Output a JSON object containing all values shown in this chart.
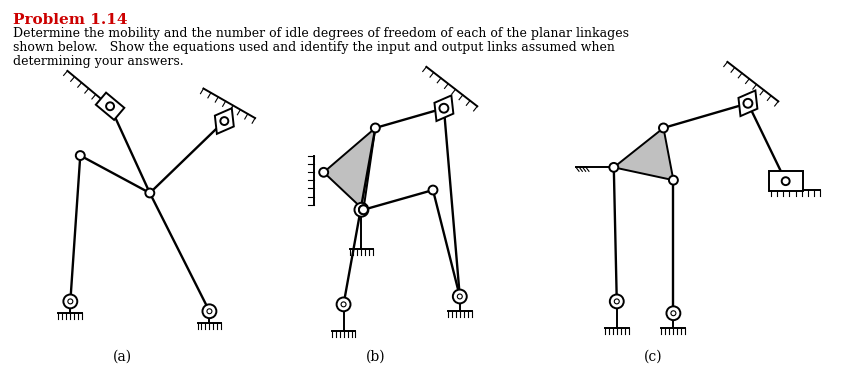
{
  "title": "Problem 1.14",
  "title_color": "#cc0000",
  "line1": "Determine the mobility and the number of idle degrees of freedom of each of the planar linkages",
  "line2": "shown below.   Show the equations used and identify the input and output links assumed when",
  "line3": "determining your answers.",
  "label_a": "(a)",
  "label_b": "(b)",
  "label_c": "(c)",
  "bg_color": "#ffffff",
  "lc": "#000000",
  "gray": "#c0c0c0",
  "fig_width": 8.58,
  "fig_height": 3.85,
  "dpi": 100
}
